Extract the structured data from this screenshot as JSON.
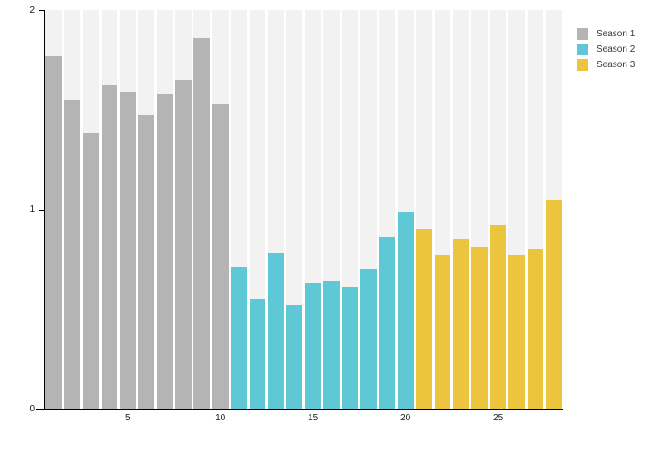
{
  "chart_data": {
    "type": "bar",
    "title": "",
    "xlabel": "",
    "ylabel": "",
    "ylim": [
      0,
      2
    ],
    "xlim": [
      1,
      28
    ],
    "total_bars": 28,
    "grid": false,
    "plot_background_bands": true,
    "band_color": "#f2f2f2",
    "axis_color": "#000000",
    "tick_text_color": "#1a1a1a",
    "legend_position": "top-right",
    "yticks": [
      {
        "value": 0,
        "label": "0"
      },
      {
        "value": 1,
        "label": "1"
      },
      {
        "value": 2,
        "label": "2"
      }
    ],
    "xticks": [
      {
        "value": 5,
        "label": "5"
      },
      {
        "value": 10,
        "label": "10"
      },
      {
        "value": 15,
        "label": "15"
      },
      {
        "value": 20,
        "label": "20"
      },
      {
        "value": 25,
        "label": "25"
      }
    ],
    "series": [
      {
        "name": "Season 1",
        "color": "#b4b4b4",
        "start_x": 1,
        "values": [
          1.77,
          1.55,
          1.38,
          1.62,
          1.59,
          1.47,
          1.58,
          1.65,
          1.86,
          1.53
        ]
      },
      {
        "name": "Season 2",
        "color": "#5fc8d7",
        "start_x": 11,
        "values": [
          0.71,
          0.55,
          0.78,
          0.52,
          0.63,
          0.64,
          0.61,
          0.7,
          0.86,
          0.99
        ]
      },
      {
        "name": "Season 3",
        "color": "#ecc43d",
        "start_x": 21,
        "values": [
          0.9,
          0.77,
          0.85,
          0.81,
          0.92,
          0.77,
          0.8,
          1.05
        ]
      }
    ]
  }
}
